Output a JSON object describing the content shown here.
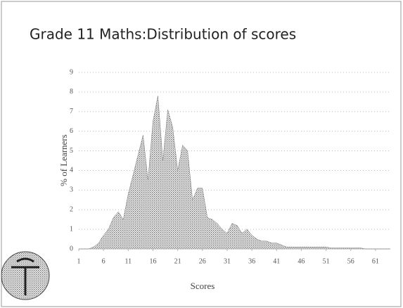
{
  "chart_data": {
    "type": "area",
    "title": "Grade 11 Maths:Distribution of scores",
    "x_label": "Scores",
    "y_label": "% of Learners",
    "x": [
      1,
      2,
      3,
      4,
      5,
      6,
      7,
      8,
      9,
      10,
      11,
      12,
      13,
      14,
      15,
      16,
      17,
      18,
      19,
      20,
      21,
      22,
      23,
      24,
      25,
      26,
      27,
      28,
      29,
      30,
      31,
      32,
      33,
      34,
      35,
      36,
      37,
      38,
      39,
      40,
      41,
      42,
      43,
      44,
      45,
      46,
      47,
      48,
      49,
      50,
      51,
      52,
      53,
      54,
      55,
      56,
      57,
      58,
      59,
      60,
      61,
      62,
      63,
      64
    ],
    "values": [
      0,
      0,
      0,
      0.1,
      0.3,
      0.7,
      1.0,
      1.6,
      1.9,
      1.5,
      2.8,
      3.8,
      4.8,
      5.8,
      3.5,
      6.5,
      7.8,
      4.5,
      7.1,
      6.2,
      4.0,
      5.3,
      5.0,
      2.5,
      3.1,
      3.1,
      1.6,
      1.5,
      1.3,
      1.0,
      0.8,
      1.3,
      1.2,
      0.8,
      1.0,
      0.7,
      0.5,
      0.4,
      0.4,
      0.3,
      0.3,
      0.2,
      0.1,
      0.1,
      0.1,
      0.1,
      0.1,
      0.1,
      0.1,
      0.1,
      0.1,
      0.05,
      0.05,
      0.05,
      0.05,
      0.05,
      0.05,
      0.05,
      0,
      0,
      0,
      0,
      0,
      0
    ],
    "xlim": [
      1,
      64
    ],
    "xticks": [
      1,
      6,
      11,
      16,
      21,
      26,
      31,
      36,
      41,
      46,
      51,
      56,
      61
    ],
    "ylim": [
      0,
      9
    ],
    "yticks": [
      0,
      1,
      2,
      3,
      4,
      5,
      6,
      7,
      8,
      9
    ],
    "grid": true,
    "color": "#777777"
  }
}
